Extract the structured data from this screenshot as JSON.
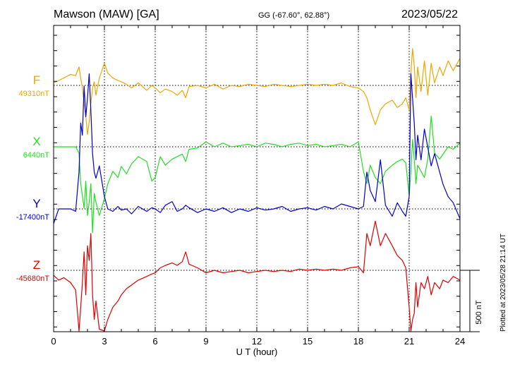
{
  "header": {
    "station": "Mawson (MAW)  [GA]",
    "coords": "GG (-67.60°,  62.88°)",
    "date": "2023/05/22"
  },
  "plot_note": "Plotted at 2023/05/28 21:14 UT",
  "scale_label": "500 nT",
  "colors": {
    "F": "#f0a500",
    "X": "#22dd22",
    "Y": "#0000cc",
    "Z": "#dd0000",
    "axis": "#000000",
    "grid": "#000000"
  },
  "chart_data": {
    "type": "line",
    "xlabel": "U T (hour)",
    "xlim": [
      0,
      24
    ],
    "x_ticks": [
      0,
      3,
      6,
      9,
      12,
      15,
      18,
      21,
      24
    ],
    "scale_bar_nT": 500,
    "grid": "dotted",
    "series": [
      {
        "name": "F",
        "baseline_label": "49310nT",
        "baseline": 49310,
        "x": [
          0,
          0.3,
          0.6,
          1.0,
          1.3,
          1.5,
          1.6,
          1.7,
          1.8,
          1.9,
          2.0,
          2.1,
          2.2,
          2.3,
          2.4,
          2.5,
          2.7,
          3.0,
          3.2,
          3.5,
          3.8,
          4.0,
          4.3,
          4.6,
          5.0,
          5.5,
          5.8,
          6.0,
          6.3,
          6.6,
          7.0,
          7.3,
          7.6,
          7.8,
          8.0,
          8.5,
          9.0,
          9.5,
          10.0,
          10.5,
          11.0,
          11.5,
          12.0,
          12.5,
          13.0,
          13.5,
          14.0,
          14.5,
          15.0,
          15.5,
          16.0,
          16.5,
          17.0,
          17.5,
          18.0,
          18.3,
          18.5,
          18.7,
          19.0,
          19.3,
          19.6,
          20.0,
          20.3,
          20.6,
          20.8,
          21.0,
          21.1,
          21.2,
          21.3,
          21.4,
          21.5,
          21.7,
          21.9,
          22.1,
          22.3,
          22.5,
          22.8,
          23.0,
          23.3,
          23.6,
          24.0
        ],
        "y": [
          20,
          40,
          60,
          90,
          80,
          150,
          60,
          -20,
          -150,
          -250,
          -400,
          -300,
          -150,
          -20,
          30,
          -80,
          60,
          180,
          100,
          60,
          40,
          30,
          10,
          -20,
          20,
          -40,
          0,
          -20,
          -60,
          -30,
          -50,
          -80,
          -40,
          -100,
          -10,
          0,
          -20,
          10,
          -30,
          0,
          -10,
          10,
          0,
          -10,
          10,
          0,
          -10,
          0,
          10,
          0,
          10,
          0,
          20,
          -10,
          -20,
          -50,
          -100,
          -200,
          -320,
          -200,
          -150,
          -120,
          -180,
          -150,
          -100,
          -200,
          100,
          300,
          160,
          -100,
          150,
          -50,
          200,
          -80,
          180,
          20,
          150,
          80,
          200,
          120,
          220
        ]
      },
      {
        "name": "X",
        "baseline_label": "6440nT",
        "baseline": 6440,
        "x": [
          0,
          0.3,
          0.6,
          1.0,
          1.3,
          1.5,
          1.6,
          1.7,
          1.8,
          1.9,
          2.0,
          2.1,
          2.2,
          2.3,
          2.4,
          2.5,
          2.7,
          3.0,
          3.2,
          3.5,
          3.8,
          4.0,
          4.3,
          4.6,
          5.0,
          5.5,
          5.8,
          6.0,
          6.3,
          6.6,
          7.0,
          7.3,
          7.6,
          7.8,
          8.0,
          8.5,
          9.0,
          9.5,
          10.0,
          10.5,
          11.0,
          11.5,
          12.0,
          12.5,
          13.0,
          13.5,
          14.0,
          14.5,
          15.0,
          15.5,
          16.0,
          16.5,
          17.0,
          17.5,
          18.0,
          18.3,
          18.5,
          18.7,
          19.0,
          19.3,
          19.6,
          20.0,
          20.3,
          20.6,
          20.8,
          21.0,
          21.1,
          21.2,
          21.3,
          21.4,
          21.5,
          21.7,
          21.9,
          22.1,
          22.3,
          22.5,
          22.8,
          23.0,
          23.3,
          23.6,
          24.0
        ],
        "y": [
          0,
          0,
          0,
          0,
          0,
          -50,
          -300,
          -400,
          -500,
          -280,
          -560,
          -450,
          -300,
          -700,
          -380,
          -450,
          -560,
          -420,
          -300,
          -200,
          -250,
          -160,
          -220,
          -140,
          -80,
          -120,
          -280,
          -250,
          -80,
          -150,
          -100,
          -80,
          -60,
          -120,
          -20,
          -10,
          40,
          0,
          30,
          0,
          10,
          20,
          0,
          30,
          20,
          0,
          20,
          30,
          10,
          20,
          0,
          10,
          20,
          0,
          40,
          -200,
          -300,
          -150,
          -250,
          -300,
          -200,
          -150,
          -120,
          -100,
          -130,
          -400,
          -200,
          60,
          -100,
          -300,
          -150,
          -200,
          -250,
          -100,
          250,
          -50,
          -100,
          -60,
          0,
          -20,
          30
        ]
      },
      {
        "name": "Y",
        "baseline_label": "-17400nT",
        "baseline": -17400,
        "x": [
          0,
          0.3,
          0.6,
          1.0,
          1.3,
          1.5,
          1.6,
          1.7,
          1.8,
          1.9,
          2.0,
          2.1,
          2.2,
          2.3,
          2.4,
          2.5,
          2.7,
          3.0,
          3.2,
          3.5,
          3.8,
          4.0,
          4.3,
          4.6,
          5.0,
          5.5,
          5.8,
          6.0,
          6.3,
          6.6,
          7.0,
          7.3,
          7.6,
          7.8,
          8.0,
          8.5,
          9.0,
          9.5,
          10.0,
          10.5,
          11.0,
          11.5,
          12.0,
          12.5,
          13.0,
          13.5,
          14.0,
          14.5,
          15.0,
          15.5,
          16.0,
          16.5,
          17.0,
          17.5,
          18.0,
          18.3,
          18.5,
          18.7,
          19.0,
          19.3,
          19.6,
          20.0,
          20.3,
          20.6,
          20.8,
          21.0,
          21.1,
          21.2,
          21.3,
          21.4,
          21.5,
          21.7,
          21.9,
          22.1,
          22.3,
          22.5,
          22.8,
          23.0,
          23.3,
          23.6,
          24.0
        ],
        "y": [
          -120,
          0,
          0,
          0,
          -20,
          300,
          700,
          600,
          1000,
          750,
          900,
          1100,
          800,
          450,
          300,
          250,
          350,
          100,
          0,
          -20,
          20,
          -10,
          0,
          -40,
          20,
          -20,
          10,
          0,
          -30,
          30,
          60,
          -20,
          0,
          30,
          10,
          -30,
          0,
          -20,
          10,
          -30,
          0,
          -20,
          10,
          -10,
          0,
          20,
          -20,
          0,
          10,
          -10,
          20,
          0,
          40,
          20,
          0,
          20,
          300,
          150,
          60,
          400,
          30,
          -60,
          50,
          -20,
          -60,
          100,
          1100,
          900,
          700,
          400,
          600,
          400,
          650,
          500,
          350,
          450,
          300,
          200,
          100,
          50,
          -80
        ]
      },
      {
        "name": "Z",
        "baseline_label": "-45680nT",
        "baseline": -45680,
        "x": [
          0,
          0.3,
          0.6,
          1.0,
          1.3,
          1.5,
          1.6,
          1.7,
          1.8,
          1.9,
          2.0,
          2.1,
          2.2,
          2.3,
          2.4,
          2.5,
          2.7,
          3.0,
          3.2,
          3.5,
          3.8,
          4.0,
          4.3,
          4.6,
          5.0,
          5.5,
          5.8,
          6.0,
          6.3,
          6.6,
          7.0,
          7.3,
          7.6,
          7.8,
          8.0,
          8.5,
          9.0,
          9.5,
          10.0,
          10.5,
          11.0,
          11.5,
          12.0,
          12.5,
          13.0,
          13.5,
          14.0,
          14.5,
          15.0,
          15.5,
          16.0,
          16.5,
          17.0,
          17.5,
          18.0,
          18.3,
          18.5,
          18.7,
          19.0,
          19.3,
          19.6,
          20.0,
          20.3,
          20.6,
          20.8,
          21.0,
          21.1,
          21.2,
          21.3,
          21.4,
          21.5,
          21.7,
          21.9,
          22.1,
          22.3,
          22.5,
          22.8,
          23.0,
          23.3,
          23.6,
          24.0
        ],
        "y": [
          -40,
          -80,
          -60,
          -100,
          -160,
          -500,
          -300,
          -100,
          150,
          -200,
          200,
          80,
          300,
          -200,
          -400,
          -250,
          -480,
          -550,
          -400,
          -300,
          -250,
          -200,
          -150,
          -120,
          -80,
          -50,
          -30,
          -20,
          20,
          40,
          60,
          40,
          70,
          150,
          50,
          20,
          -20,
          0,
          -20,
          -10,
          0,
          -20,
          -10,
          0,
          -10,
          0,
          -10,
          10,
          0,
          10,
          0,
          10,
          0,
          20,
          30,
          -20,
          300,
          200,
          400,
          200,
          300,
          200,
          120,
          80,
          20,
          -300,
          -500,
          -400,
          -350,
          -100,
          -300,
          -100,
          -150,
          -50,
          -200,
          -100,
          -150,
          -80,
          -100,
          -50,
          -80
        ]
      }
    ]
  }
}
